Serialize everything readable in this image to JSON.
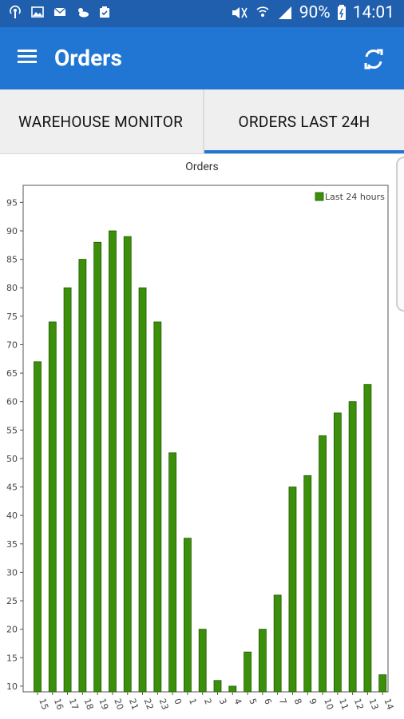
{
  "status_bar": {
    "battery": "90%",
    "time": "14:01"
  },
  "app_bar": {
    "title": "Orders",
    "menu_icon": "hamburger-menu-icon",
    "refresh_icon": "refresh-icon"
  },
  "tabs": [
    {
      "label": "WAREHOUSE MONITOR",
      "selected": false
    },
    {
      "label": "ORDERS LAST 24H",
      "selected": true
    }
  ],
  "chart_data": {
    "type": "bar",
    "title": "Orders",
    "categories": [
      "15",
      "16",
      "17",
      "18",
      "19",
      "20",
      "21",
      "22",
      "23",
      "0",
      "1",
      "2",
      "3",
      "4",
      "5",
      "6",
      "7",
      "8",
      "9",
      "10",
      "11",
      "12",
      "13",
      "14"
    ],
    "series": [
      {
        "name": "Last 24 hours",
        "color": "#3c8f0a",
        "values": [
          67,
          74,
          80,
          85,
          88,
          90,
          89,
          80,
          74,
          51,
          36,
          20,
          11,
          10,
          16,
          20,
          26,
          45,
          47,
          54,
          58,
          60,
          63,
          12
        ]
      }
    ],
    "y_ticks": [
      10,
      15,
      20,
      25,
      30,
      35,
      40,
      45,
      50,
      55,
      60,
      65,
      70,
      75,
      80,
      85,
      90,
      95
    ],
    "ylim": [
      9,
      98
    ],
    "legend_position": "top-right"
  }
}
